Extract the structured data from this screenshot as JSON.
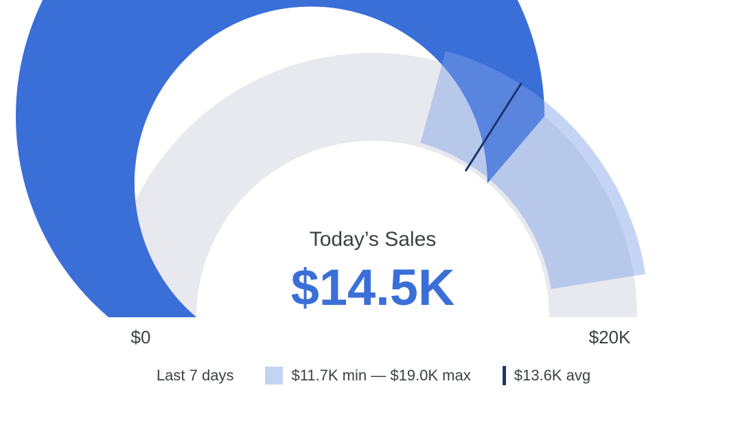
{
  "chart_data": {
    "type": "gauge",
    "title": "Today’s Sales",
    "value": 14.5,
    "value_label": "$14.5K",
    "axis": {
      "min": 0,
      "max": 20,
      "min_label": "$0",
      "max_label": "$20K",
      "arc_span_degrees": 180
    },
    "range_band": {
      "min": 11.7,
      "max": 19.0,
      "label": "$11.7K min — $19.0K max"
    },
    "average": {
      "value": 13.6,
      "label": "$13.6K avg"
    },
    "period_label": "Last 7 days",
    "colors": {
      "value_arc": "#3B6FD8",
      "track": "#E8E9EE",
      "range_band": "#7FA0E6",
      "range_band_opacity": 0.45,
      "avg_tick": "#1A366F",
      "title_text": "#3C4043",
      "value_text": "#3B6FD8",
      "axis_text": "#3C4043",
      "swatch": "#C3D3F2"
    }
  }
}
